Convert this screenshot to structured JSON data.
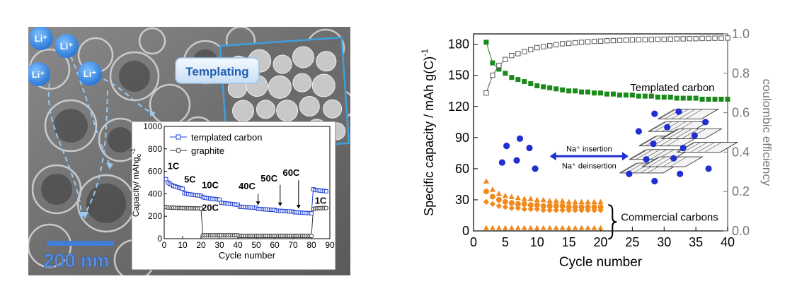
{
  "left_panel": {
    "ions": [
      "Li⁺",
      "Li⁺",
      "Li⁺",
      "Li⁺"
    ],
    "templating_label": "Templating",
    "scale_bar_text": "200 nm",
    "colors": {
      "ion_blue": "#3d8fe0",
      "scale_blue": "#3f7fd8",
      "templated": "#1f3fd6",
      "graphite": "#333333"
    },
    "inset_chart": {
      "type": "scatter",
      "xlabel": "Cycle number",
      "ylabel": "Capacity/ mAhg",
      "ylabel_sub": "c",
      "ylabel_sup": "-1",
      "xlim": [
        0,
        90
      ],
      "ylim": [
        0,
        1000
      ],
      "xticks": [
        "0",
        "10",
        "20",
        "30",
        "40",
        "50",
        "60",
        "70",
        "80",
        "90"
      ],
      "yticks": [
        "0",
        "200",
        "400",
        "600",
        "800",
        "1000"
      ],
      "legend": [
        "templated carbon",
        "graphite"
      ],
      "rate_labels": [
        "1C",
        "5C",
        "10C",
        "20C",
        "40C",
        "50C",
        "60C",
        "1C"
      ],
      "series": [
        {
          "name": "templated carbon",
          "x": [
            1,
            2,
            3,
            4,
            5,
            6,
            7,
            8,
            9,
            10,
            11,
            12,
            13,
            14,
            15,
            16,
            17,
            18,
            19,
            20,
            21,
            22,
            23,
            24,
            25,
            26,
            27,
            28,
            29,
            30,
            31,
            32,
            33,
            34,
            35,
            36,
            37,
            38,
            39,
            40,
            41,
            42,
            43,
            44,
            45,
            46,
            47,
            48,
            49,
            50,
            51,
            52,
            53,
            54,
            55,
            56,
            57,
            58,
            59,
            60,
            61,
            62,
            63,
            64,
            65,
            66,
            67,
            68,
            69,
            70,
            71,
            72,
            73,
            74,
            75,
            76,
            77,
            78,
            79,
            80,
            81,
            82,
            83,
            84,
            85,
            86,
            87,
            88
          ],
          "y": [
            530,
            500,
            490,
            480,
            470,
            465,
            460,
            455,
            450,
            445,
            405,
            400,
            398,
            395,
            392,
            390,
            388,
            386,
            384,
            382,
            370,
            365,
            362,
            360,
            358,
            356,
            354,
            352,
            350,
            348,
            320,
            318,
            316,
            314,
            312,
            310,
            308,
            306,
            304,
            302,
            285,
            283,
            282,
            281,
            280,
            279,
            278,
            277,
            276,
            275,
            265,
            264,
            263,
            262,
            261,
            260,
            259,
            258,
            257,
            256,
            250,
            249,
            248,
            247,
            246,
            245,
            244,
            243,
            242,
            241,
            235,
            234,
            233,
            232,
            231,
            230,
            229,
            228,
            227,
            226,
            440,
            435,
            432,
            430,
            428,
            426,
            424,
            422
          ]
        },
        {
          "name": "graphite",
          "x": [
            1,
            2,
            3,
            4,
            5,
            6,
            7,
            8,
            9,
            10,
            11,
            12,
            13,
            14,
            15,
            16,
            17,
            18,
            19,
            20,
            21,
            22,
            23,
            24,
            25,
            26,
            27,
            28,
            29,
            30,
            31,
            32,
            33,
            34,
            35,
            36,
            37,
            38,
            39,
            40,
            41,
            42,
            43,
            44,
            45,
            46,
            47,
            48,
            49,
            50,
            51,
            52,
            53,
            54,
            55,
            56,
            57,
            58,
            59,
            60,
            61,
            62,
            63,
            64,
            65,
            66,
            67,
            68,
            69,
            70,
            71,
            72,
            73,
            74,
            75,
            76,
            77,
            78,
            79,
            80,
            81,
            82,
            83,
            84,
            85,
            86,
            87,
            88
          ],
          "y": [
            280,
            278,
            277,
            276,
            275,
            275,
            274,
            274,
            273,
            273,
            272,
            272,
            271,
            271,
            270,
            270,
            270,
            269,
            269,
            268,
            30,
            30,
            30,
            30,
            30,
            30,
            30,
            30,
            30,
            30,
            30,
            30,
            30,
            30,
            30,
            30,
            30,
            30,
            30,
            30,
            25,
            25,
            25,
            25,
            25,
            25,
            25,
            25,
            25,
            25,
            25,
            25,
            25,
            25,
            25,
            25,
            25,
            25,
            25,
            25,
            25,
            25,
            25,
            25,
            25,
            25,
            25,
            25,
            25,
            25,
            25,
            25,
            25,
            25,
            25,
            25,
            25,
            25,
            25,
            25,
            265,
            268,
            270,
            271,
            272,
            272,
            273,
            273
          ]
        }
      ]
    }
  },
  "chart_data": {
    "type": "scatter",
    "title": "",
    "xlabel": "Cycle number",
    "ylabel": "Specific capacity / mAh g(C)",
    "ylabel_sup": "-1",
    "ylabel_right": "coulombic efficiency",
    "xlim": [
      0,
      40
    ],
    "ylim": [
      0,
      190
    ],
    "ylim_right": [
      0,
      1.0
    ],
    "xticks": [
      "0",
      "5",
      "10",
      "15",
      "20",
      "25",
      "30",
      "35",
      "40"
    ],
    "yticks": [
      "0",
      "30",
      "60",
      "90",
      "120",
      "150",
      "180"
    ],
    "yticks_right": [
      "0.0",
      "0.2",
      "0.4",
      "0.6",
      "0.8",
      "1.0"
    ],
    "annotations": [
      "Templated carbon",
      "Commercial carbons",
      "Na⁺ insertion",
      "Na⁺ deinsertion"
    ],
    "colors": {
      "templated": "#1a8a1a",
      "commercial": "#f08a1c",
      "efficiency": "#555555",
      "na": "#1f2fd0",
      "axis_right": "#777777"
    },
    "series": [
      {
        "x": [
          2,
          3,
          4,
          5,
          6,
          7,
          8,
          9,
          10,
          11,
          12,
          13,
          14,
          15,
          16,
          17,
          18,
          19,
          20,
          21,
          22,
          23,
          24,
          25,
          26,
          27,
          28,
          29,
          30,
          31,
          32,
          33,
          34,
          35,
          36,
          37,
          38,
          39,
          40
        ],
        "y": [
          182,
          162,
          156,
          152,
          148,
          146,
          144,
          142,
          140,
          139,
          138,
          137,
          136,
          135,
          135,
          134,
          134,
          133,
          133,
          132,
          132,
          131,
          131,
          131,
          130,
          130,
          130,
          129,
          129,
          129,
          128,
          128,
          128,
          128,
          127,
          127,
          127,
          127,
          127
        ]
      },
      {
        "x": [
          2,
          3,
          4,
          5,
          6,
          7,
          8,
          9,
          10,
          11,
          12,
          13,
          14,
          15,
          16,
          17,
          18,
          19,
          20,
          21,
          22,
          23,
          24,
          25,
          26,
          27,
          28,
          29,
          30,
          31,
          32,
          33,
          34,
          35,
          36,
          37,
          38,
          39,
          40
        ],
        "y": [
          0.7,
          0.79,
          0.84,
          0.87,
          0.89,
          0.9,
          0.91,
          0.92,
          0.93,
          0.935,
          0.94,
          0.945,
          0.95,
          0.952,
          0.955,
          0.957,
          0.96,
          0.962,
          0.963,
          0.965,
          0.966,
          0.967,
          0.968,
          0.969,
          0.97,
          0.971,
          0.972,
          0.973,
          0.973,
          0.974,
          0.975,
          0.975,
          0.976,
          0.976,
          0.977,
          0.977,
          0.978,
          0.978,
          0.979
        ]
      },
      {
        "x": [
          2,
          3,
          4,
          5,
          6,
          7,
          8,
          9,
          10,
          11,
          12,
          13,
          14,
          15,
          16,
          17,
          18,
          19,
          20
        ],
        "y": [
          48,
          40,
          36,
          34,
          33,
          32,
          31,
          31,
          30,
          30,
          29,
          29,
          29,
          28,
          28,
          28,
          28,
          28,
          28
        ]
      },
      {
        "x": [
          2,
          3,
          4,
          5,
          6,
          7,
          8,
          9,
          10,
          11,
          12,
          13,
          14,
          15,
          16,
          17,
          18,
          19,
          20
        ],
        "y": [
          38,
          33,
          30,
          28,
          27,
          26,
          26,
          25,
          25,
          24,
          24,
          24,
          24,
          23,
          23,
          23,
          23,
          23,
          23
        ]
      },
      {
        "x": [
          2,
          3,
          4,
          5,
          6,
          7,
          8,
          9,
          10,
          11,
          12,
          13,
          14,
          15,
          16,
          17,
          18,
          19,
          20
        ],
        "y": [
          28,
          26,
          24,
          23,
          22,
          22,
          21,
          21,
          21,
          20,
          20,
          20,
          20,
          20,
          20,
          20,
          20,
          20,
          20
        ]
      },
      {
        "x": [
          2,
          3,
          4,
          5,
          6,
          7,
          8,
          9,
          10,
          11,
          12,
          13,
          14,
          15,
          16,
          17,
          18,
          19,
          20
        ],
        "y": [
          3,
          3,
          3,
          3,
          3,
          3,
          3,
          3,
          3,
          3,
          3,
          3,
          3,
          3,
          3,
          3,
          3,
          3,
          3
        ]
      }
    ]
  }
}
